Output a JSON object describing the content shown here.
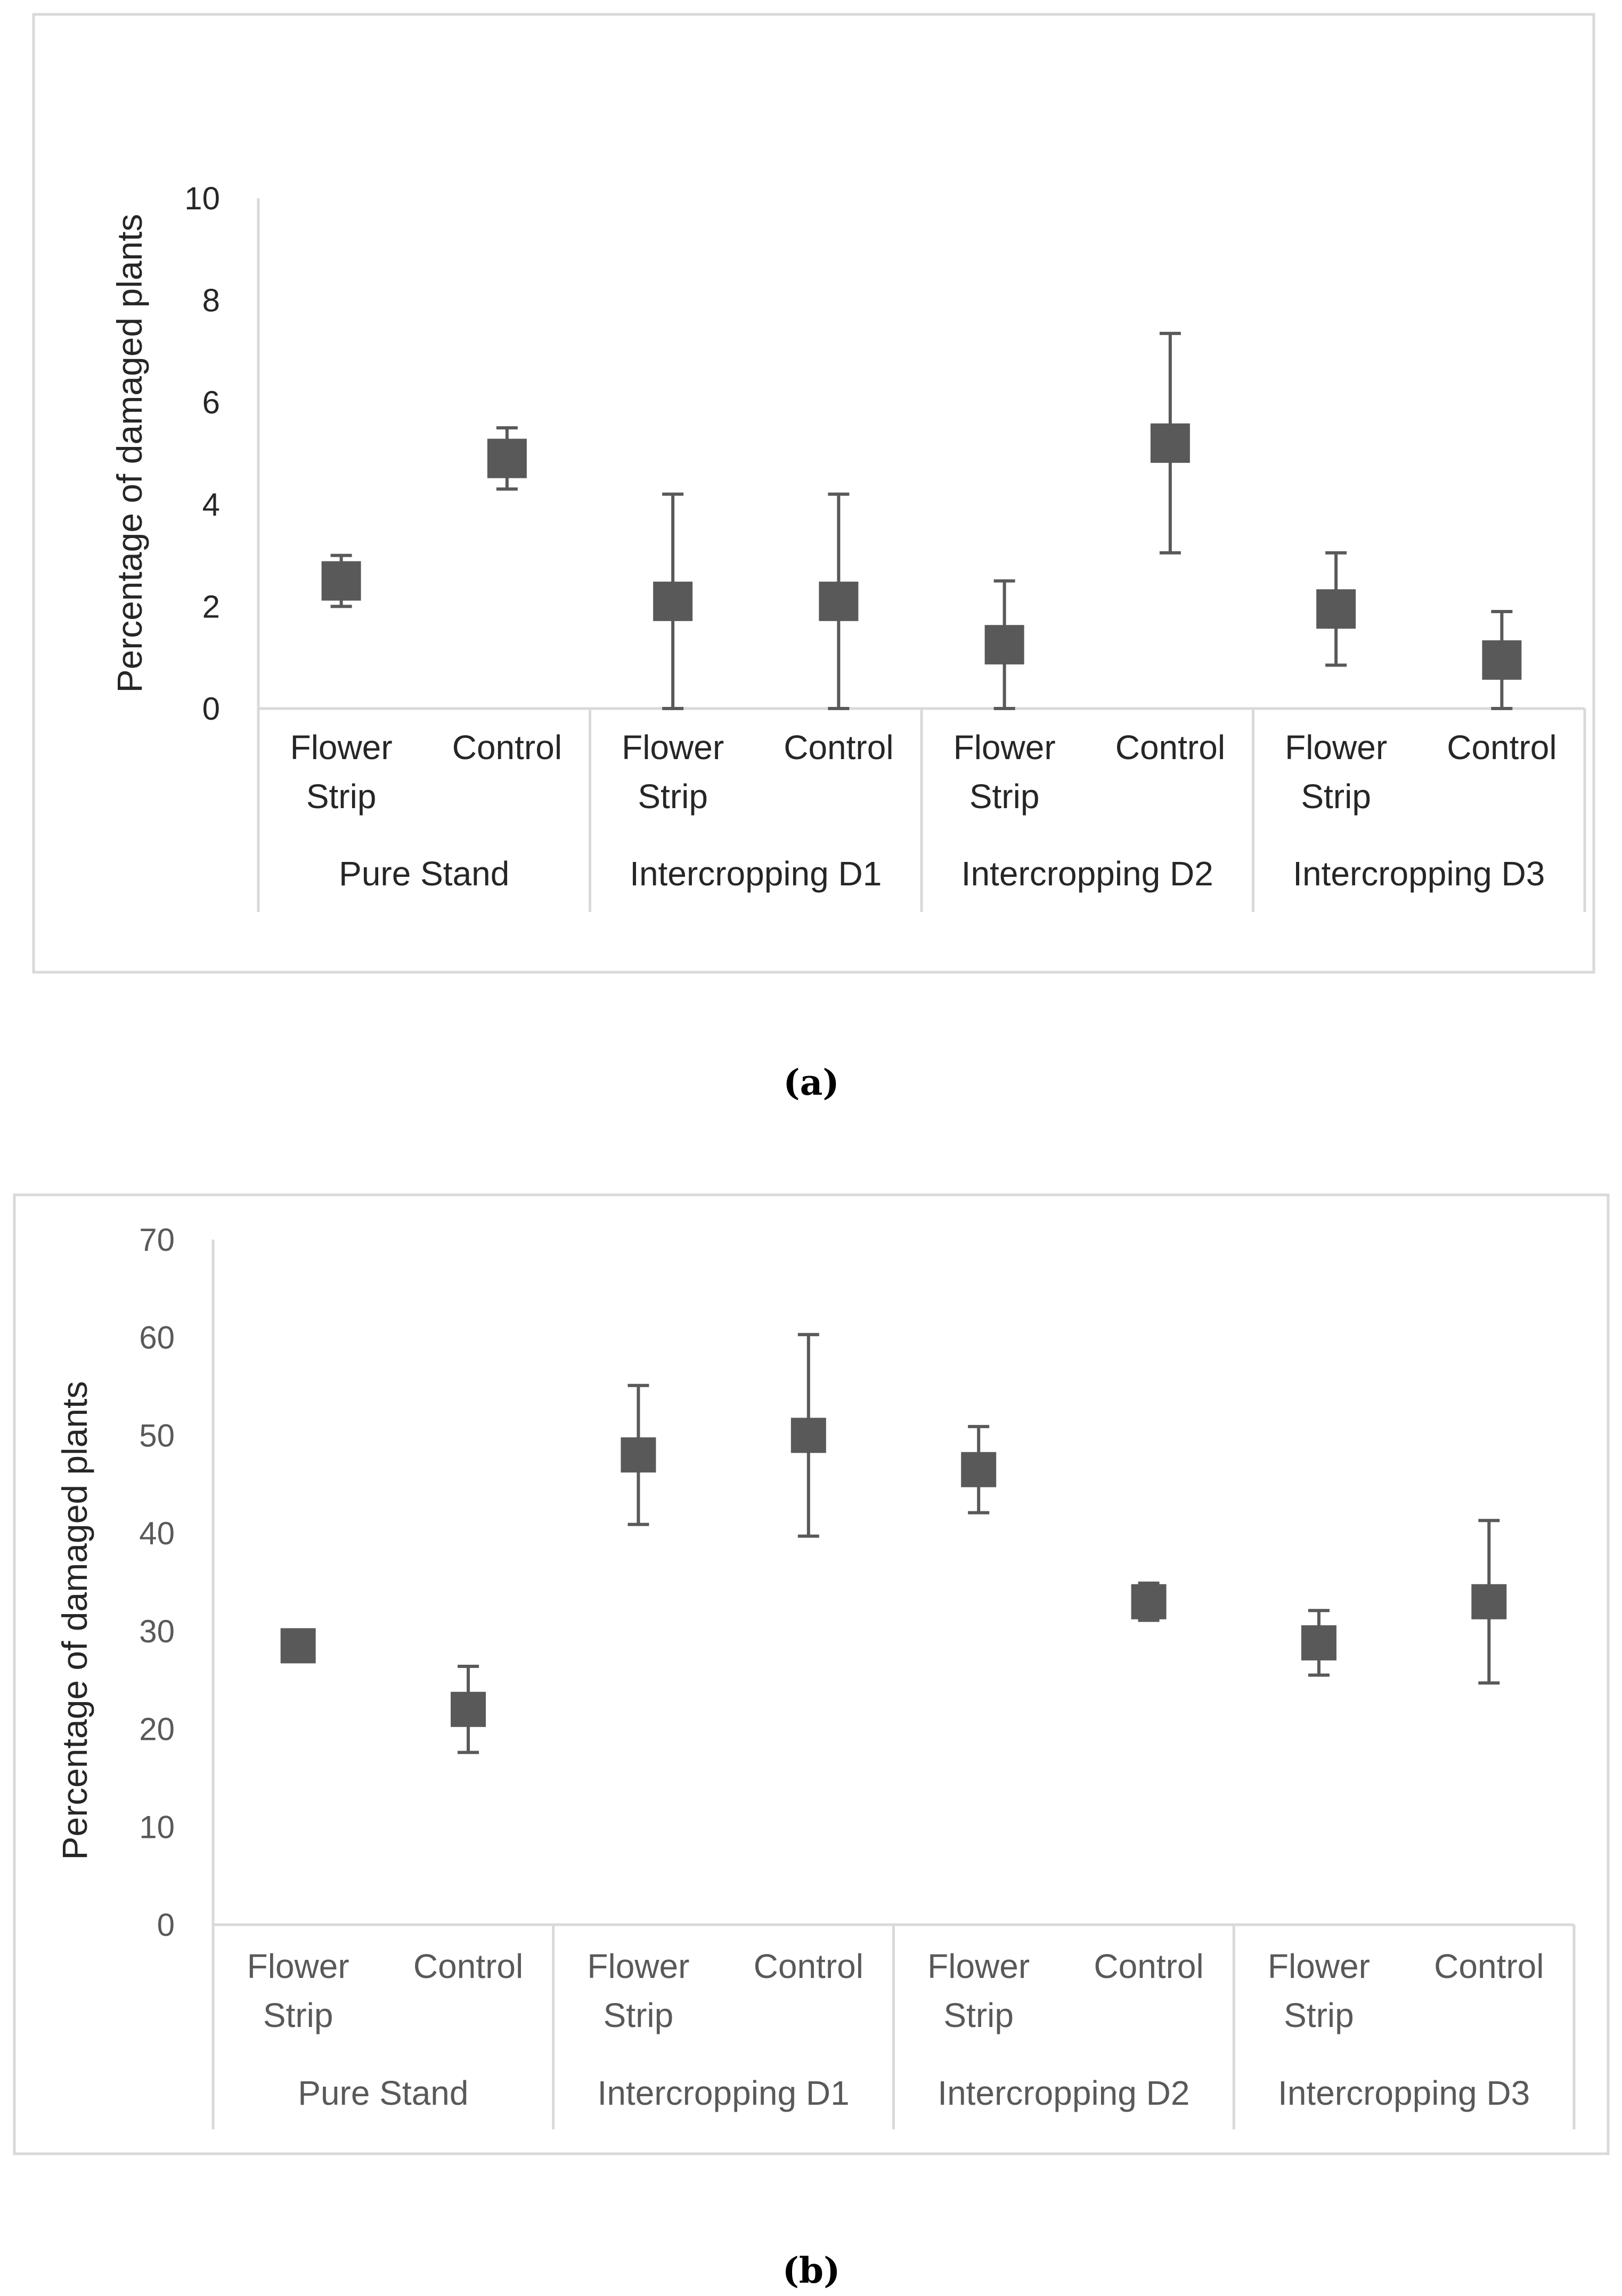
{
  "figure": {
    "caption_a": "(a)",
    "caption_b": "(b)"
  },
  "colors": {
    "marker": "#595959",
    "axis": "#d9d9d9",
    "text_dark": "#262626",
    "text_gray": "#595959",
    "frame": "#d9d9d9"
  },
  "chart_data": [
    {
      "type": "scatter",
      "title": "",
      "ylabel": "Percentage of damaged plants",
      "xlabel": "",
      "ylim": [
        0,
        10
      ],
      "yticks": [
        0,
        2,
        4,
        6,
        8,
        10
      ],
      "groups": [
        "Pure Stand",
        "Intercropping D1",
        "Intercropping D2",
        "Intercropping D3"
      ],
      "categories": [
        "Flower Strip",
        "Control",
        "Flower Strip",
        "Control",
        "Flower Strip",
        "Control",
        "Flower Strip",
        "Control"
      ],
      "values": [
        2.5,
        4.9,
        2.1,
        2.1,
        1.25,
        5.2,
        1.95,
        0.95
      ],
      "error": [
        0.5,
        0.6,
        2.1,
        2.1,
        1.25,
        2.15,
        1.1,
        0.95
      ],
      "grid": false,
      "legend": "none"
    },
    {
      "type": "scatter",
      "title": "",
      "ylabel": "Percentage of damaged plants",
      "xlabel": "",
      "ylim": [
        0,
        70
      ],
      "yticks": [
        0,
        10,
        20,
        30,
        40,
        50,
        60,
        70
      ],
      "groups": [
        "Pure Stand",
        "Intercropping D1",
        "Intercropping D2",
        "Intercropping D3"
      ],
      "categories": [
        "Flower Strip",
        "Control",
        "Flower Strip",
        "Control",
        "Flower Strip",
        "Control",
        "Flower Strip",
        "Control"
      ],
      "values": [
        28.5,
        22,
        48,
        50,
        46.5,
        33,
        28.8,
        33
      ],
      "error": [
        0,
        4.4,
        7.1,
        10.3,
        4.4,
        1.9,
        3.3,
        8.3
      ],
      "grid": false,
      "legend": "none"
    }
  ]
}
